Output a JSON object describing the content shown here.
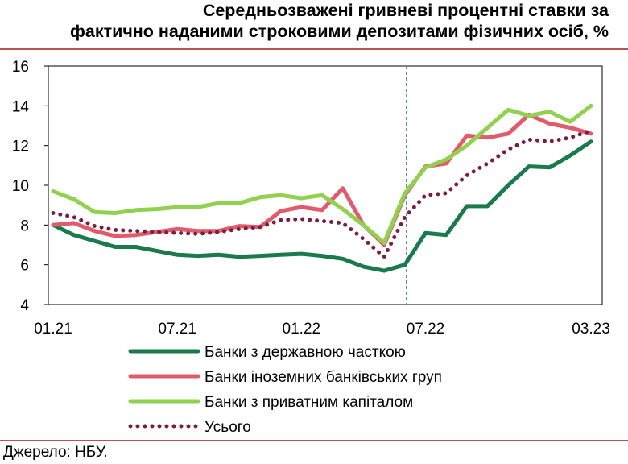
{
  "title": {
    "line1": "Середньозважені гривневі процентні ставки за",
    "line2": "фактично наданими строковими депозитами фізичних осіб, %"
  },
  "source": "Джерело: НБУ.",
  "colors": {
    "state": "#1a7a4c",
    "foreign": "#e05c6c",
    "private": "#92d050",
    "total": "#7a1f3d",
    "frame": "#c0504d",
    "marker": "#4a6fa5"
  },
  "chart_data": {
    "type": "line",
    "title": "Середньозважені гривневі процентні ставки за фактично наданими строковими депозитами фізичних осіб, %",
    "xlabel": "",
    "ylabel": "",
    "ylim": [
      4,
      16
    ],
    "yticks": [
      "4",
      "6",
      "8",
      "10",
      "12",
      "14",
      "16"
    ],
    "x": [
      "01.21",
      "02.21",
      "03.21",
      "04.21",
      "05.21",
      "06.21",
      "07.21",
      "08.21",
      "09.21",
      "10.21",
      "11.21",
      "12.21",
      "01.22",
      "02.22",
      "03.22",
      "04.22",
      "05.22",
      "06.22",
      "07.22",
      "08.22",
      "09.22",
      "10.22",
      "11.22",
      "12.22",
      "01.23",
      "02.23",
      "03.23"
    ],
    "xtick_labels": [
      "01.21",
      "07.21",
      "01.22",
      "07.22",
      "03.23"
    ],
    "vline_after": "06.22",
    "series": [
      {
        "name": "Банки з державною часткою",
        "key": "state",
        "style": "solid",
        "values": [
          8.0,
          7.5,
          7.2,
          6.9,
          6.9,
          6.7,
          6.5,
          6.45,
          6.5,
          6.4,
          6.45,
          6.5,
          6.55,
          6.45,
          6.3,
          5.9,
          5.7,
          6.0,
          7.6,
          7.5,
          8.95,
          8.95,
          10.0,
          10.95,
          10.9,
          11.5,
          12.2
        ]
      },
      {
        "name": "Банки іноземних банківських груп",
        "key": "foreign",
        "style": "solid",
        "values": [
          8.0,
          8.1,
          7.7,
          7.45,
          7.5,
          7.65,
          7.8,
          7.7,
          7.7,
          7.95,
          7.9,
          8.7,
          8.9,
          8.75,
          9.85,
          8.0,
          7.0,
          9.5,
          10.95,
          11.1,
          12.5,
          12.4,
          12.6,
          13.55,
          13.1,
          12.9,
          12.6
        ]
      },
      {
        "name": "Банки з приватним капіталом",
        "key": "private",
        "style": "solid",
        "values": [
          9.7,
          9.3,
          8.65,
          8.6,
          8.75,
          8.8,
          8.9,
          8.9,
          9.1,
          9.1,
          9.4,
          9.5,
          9.35,
          9.5,
          8.8,
          8.0,
          7.1,
          9.6,
          10.9,
          11.3,
          12.0,
          12.9,
          13.8,
          13.5,
          13.7,
          13.2,
          14.0
        ]
      },
      {
        "name": "Усього",
        "key": "total",
        "style": "dotted",
        "values": [
          8.6,
          8.4,
          7.95,
          7.75,
          7.7,
          7.65,
          7.6,
          7.55,
          7.65,
          7.8,
          7.9,
          8.25,
          8.3,
          8.2,
          8.1,
          7.3,
          6.4,
          8.4,
          9.5,
          9.6,
          10.5,
          11.1,
          11.8,
          12.3,
          12.2,
          12.4,
          12.75
        ]
      }
    ],
    "legend_position": "bottom"
  }
}
